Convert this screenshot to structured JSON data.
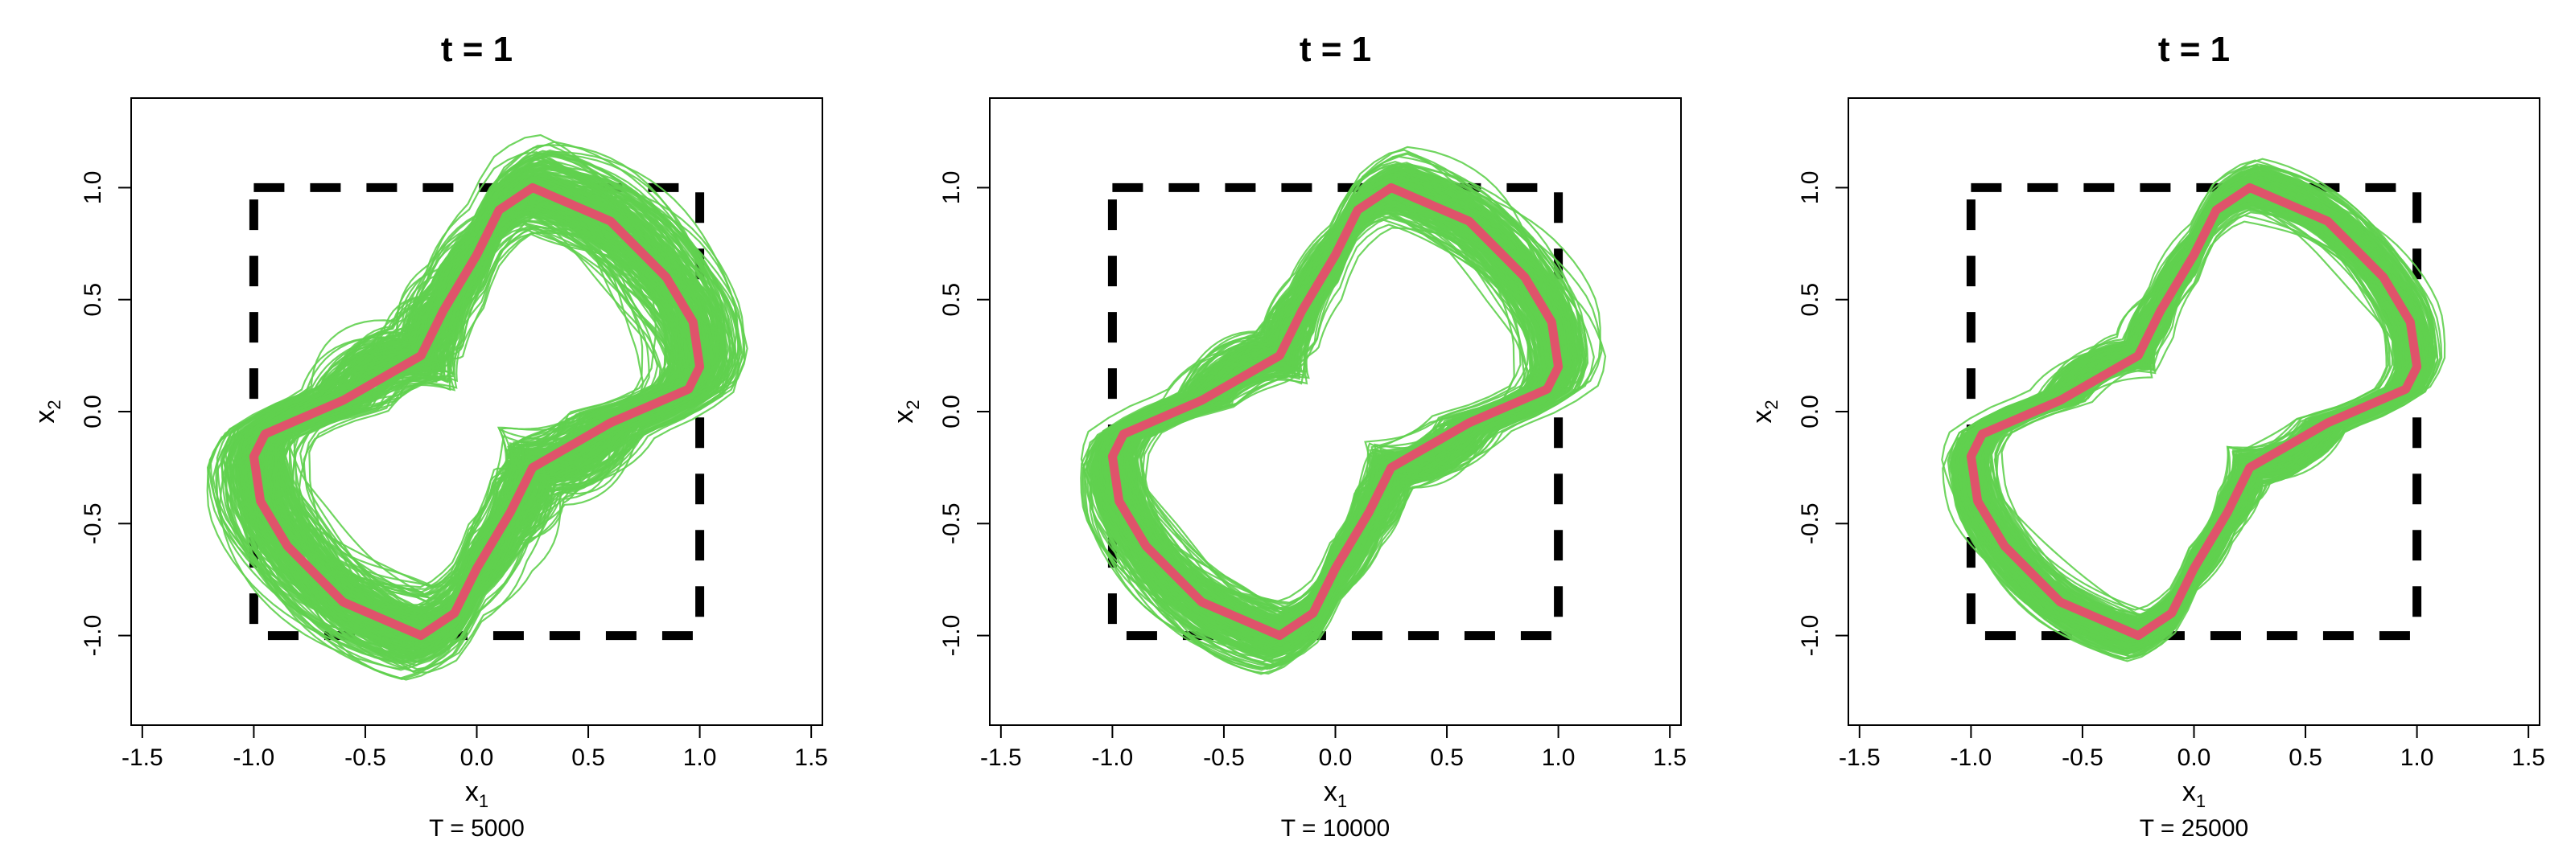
{
  "colors": {
    "trajectories": "#61D04F",
    "true_boundary": "#DF536B",
    "square": "#000000"
  },
  "chart_data": [
    {
      "type": "line",
      "title": "t = 1",
      "xlabel": "x",
      "xlabel_sub": "1",
      "ylabel": "x",
      "ylabel_sub": "2",
      "footer": "T = 5000",
      "xlim": [
        -1.55,
        1.55
      ],
      "ylim": [
        -1.4,
        1.4
      ],
      "xticks": [
        "-1.5",
        "-1.0",
        "-0.5",
        "0.0",
        "0.5",
        "1.0",
        "1.5"
      ],
      "yticks": [
        "-1.0",
        "-0.5",
        "0.0",
        "0.5",
        "1.0"
      ],
      "spread": 0.14,
      "n_curves": 260,
      "seed": 11,
      "true_boundary": [
        [
          0.25,
          1.0
        ],
        [
          0.6,
          0.85
        ],
        [
          0.85,
          0.6
        ],
        [
          0.97,
          0.4
        ],
        [
          1.0,
          0.2
        ],
        [
          0.95,
          0.1
        ],
        [
          0.6,
          -0.05
        ],
        [
          0.25,
          -0.25
        ],
        [
          0.15,
          -0.45
        ],
        [
          0.0,
          -0.7
        ],
        [
          -0.1,
          -0.9
        ],
        [
          -0.25,
          -1.0
        ],
        [
          -0.6,
          -0.85
        ],
        [
          -0.85,
          -0.6
        ],
        [
          -0.97,
          -0.4
        ],
        [
          -1.0,
          -0.2
        ],
        [
          -0.95,
          -0.1
        ],
        [
          -0.6,
          0.05
        ],
        [
          -0.25,
          0.25
        ],
        [
          -0.15,
          0.45
        ],
        [
          0.0,
          0.7
        ],
        [
          0.1,
          0.9
        ]
      ],
      "square": [
        -1,
        1
      ]
    },
    {
      "type": "line",
      "title": "t = 1",
      "xlabel": "x",
      "xlabel_sub": "1",
      "ylabel": "x",
      "ylabel_sub": "2",
      "footer": "T = 10000",
      "xlim": [
        -1.55,
        1.55
      ],
      "ylim": [
        -1.4,
        1.4
      ],
      "xticks": [
        "-1.5",
        "-1.0",
        "-0.5",
        "0.0",
        "0.5",
        "1.0",
        "1.5"
      ],
      "yticks": [
        "-1.0",
        "-0.5",
        "0.0",
        "0.5",
        "1.0"
      ],
      "spread": 0.1,
      "n_curves": 260,
      "seed": 23,
      "true_boundary": [
        [
          0.25,
          1.0
        ],
        [
          0.6,
          0.85
        ],
        [
          0.85,
          0.6
        ],
        [
          0.97,
          0.4
        ],
        [
          1.0,
          0.2
        ],
        [
          0.95,
          0.1
        ],
        [
          0.6,
          -0.05
        ],
        [
          0.25,
          -0.25
        ],
        [
          0.15,
          -0.45
        ],
        [
          0.0,
          -0.7
        ],
        [
          -0.1,
          -0.9
        ],
        [
          -0.25,
          -1.0
        ],
        [
          -0.6,
          -0.85
        ],
        [
          -0.85,
          -0.6
        ],
        [
          -0.97,
          -0.4
        ],
        [
          -1.0,
          -0.2
        ],
        [
          -0.95,
          -0.1
        ],
        [
          -0.6,
          0.05
        ],
        [
          -0.25,
          0.25
        ],
        [
          -0.15,
          0.45
        ],
        [
          0.0,
          0.7
        ],
        [
          0.1,
          0.9
        ]
      ],
      "square": [
        -1,
        1
      ]
    },
    {
      "type": "line",
      "title": "t = 1",
      "xlabel": "x",
      "xlabel_sub": "1",
      "ylabel": "x",
      "ylabel_sub": "2",
      "footer": "T = 25000",
      "xlim": [
        -1.55,
        1.55
      ],
      "ylim": [
        -1.4,
        1.4
      ],
      "xticks": [
        "-1.5",
        "-1.0",
        "-0.5",
        "0.0",
        "0.5",
        "1.0",
        "1.5"
      ],
      "yticks": [
        "-1.0",
        "-0.5",
        "0.0",
        "0.5",
        "1.0"
      ],
      "spread": 0.075,
      "n_curves": 260,
      "seed": 37,
      "true_boundary": [
        [
          0.25,
          1.0
        ],
        [
          0.6,
          0.85
        ],
        [
          0.85,
          0.6
        ],
        [
          0.97,
          0.4
        ],
        [
          1.0,
          0.2
        ],
        [
          0.95,
          0.1
        ],
        [
          0.6,
          -0.05
        ],
        [
          0.25,
          -0.25
        ],
        [
          0.15,
          -0.45
        ],
        [
          0.0,
          -0.7
        ],
        [
          -0.1,
          -0.9
        ],
        [
          -0.25,
          -1.0
        ],
        [
          -0.6,
          -0.85
        ],
        [
          -0.85,
          -0.6
        ],
        [
          -0.97,
          -0.4
        ],
        [
          -1.0,
          -0.2
        ],
        [
          -0.95,
          -0.1
        ],
        [
          -0.6,
          0.05
        ],
        [
          -0.25,
          0.25
        ],
        [
          -0.15,
          0.45
        ],
        [
          0.0,
          0.7
        ],
        [
          0.1,
          0.9
        ]
      ],
      "square": [
        -1,
        1
      ]
    }
  ]
}
